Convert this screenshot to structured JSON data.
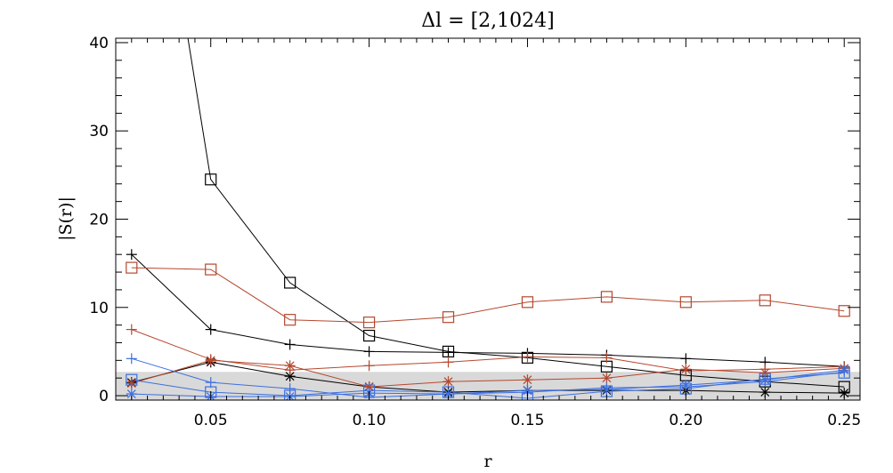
{
  "chart_data": {
    "type": "line",
    "title": "Δl = [2,1024]",
    "xlabel": "r",
    "ylabel": "|S(r)|",
    "xlim": [
      0.02,
      0.255
    ],
    "ylim": [
      -0.5,
      40.5
    ],
    "xticks": [
      0.05,
      0.1,
      0.15,
      0.2,
      0.25
    ],
    "xtick_labels": [
      "0.05",
      "0.10",
      "0.15",
      "0.20",
      "0.25"
    ],
    "yticks": [
      0,
      10,
      20,
      30,
      40
    ],
    "ytick_labels": [
      "0",
      "10",
      "20",
      "30",
      "40"
    ],
    "grid": false,
    "legend": "none",
    "shaded_band": {
      "y_from": -0.5,
      "y_to": 2.7,
      "color": "#d9d9d9"
    },
    "x": [
      0.025,
      0.05,
      0.075,
      0.1,
      0.125,
      0.15,
      0.175,
      0.2,
      0.225,
      0.25
    ],
    "series": [
      {
        "color": "#000000",
        "marker": "square",
        "values": [
          80,
          24.5,
          12.8,
          6.8,
          5.0,
          4.3,
          3.3,
          2.3,
          1.6,
          1.0
        ]
      },
      {
        "color": "#000000",
        "marker": "plus",
        "values": [
          16.0,
          7.5,
          5.8,
          5.0,
          4.9,
          4.8,
          4.6,
          4.2,
          3.8,
          3.3
        ]
      },
      {
        "color": "#000000",
        "marker": "asterisk",
        "values": [
          1.5,
          3.8,
          2.2,
          1.0,
          0.4,
          0.6,
          0.6,
          0.6,
          0.4,
          0.3
        ]
      },
      {
        "color": "#b5482e",
        "marker": "square",
        "values": [
          14.5,
          14.3,
          8.6,
          8.3,
          8.9,
          10.6,
          11.2,
          10.6,
          10.8,
          9.6
        ]
      },
      {
        "color": "#b5482e",
        "marker": "plus",
        "values": [
          7.5,
          4.1,
          2.9,
          3.4,
          3.8,
          4.4,
          4.3,
          2.8,
          3.0,
          3.3
        ]
      },
      {
        "color": "#b5482e",
        "marker": "asterisk",
        "values": [
          1.4,
          4.0,
          3.4,
          1.0,
          1.6,
          1.8,
          2.0,
          3.0,
          2.6,
          3.1
        ]
      },
      {
        "color": "#3c6fe0",
        "marker": "square",
        "values": [
          1.8,
          0.4,
          0.0,
          0.6,
          0.4,
          -0.3,
          0.5,
          0.8,
          1.9,
          2.6
        ]
      },
      {
        "color": "#3c6fe0",
        "marker": "plus",
        "values": [
          4.2,
          1.5,
          0.8,
          -0.2,
          0.2,
          0.4,
          0.9,
          1.0,
          1.6,
          2.7
        ]
      },
      {
        "color": "#3c6fe0",
        "marker": "asterisk",
        "values": [
          0.2,
          -0.1,
          -0.1,
          0.3,
          0.2,
          0.6,
          0.7,
          1.2,
          1.8,
          2.9
        ]
      }
    ]
  }
}
